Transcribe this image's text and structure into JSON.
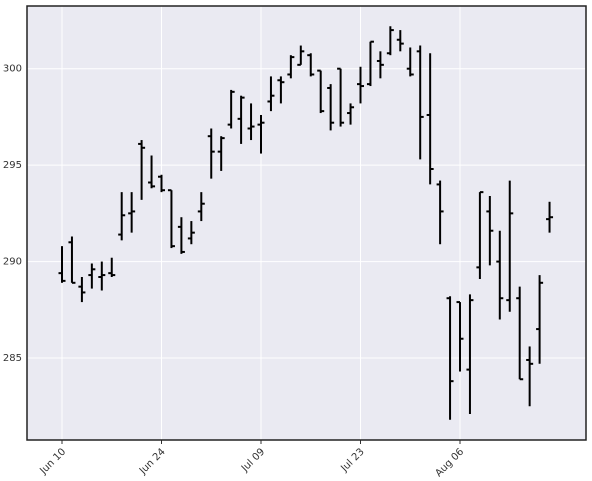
{
  "chart_data": {
    "type": "ohlc",
    "categories": [
      "Jun 10",
      null,
      null,
      null,
      null,
      null,
      null,
      null,
      null,
      null,
      "Jun 24",
      null,
      null,
      null,
      null,
      null,
      null,
      null,
      null,
      null,
      "Jul 09",
      null,
      null,
      null,
      null,
      null,
      null,
      null,
      null,
      null,
      "Jul 23",
      null,
      null,
      null,
      null,
      null,
      null,
      null,
      null,
      null,
      "Aug 06",
      null,
      null,
      null,
      null,
      null,
      null,
      null,
      null,
      null
    ],
    "open": [
      289.4,
      291.0,
      288.7,
      289.3,
      289.2,
      289.4,
      291.4,
      292.5,
      296.1,
      294.1,
      294.4,
      293.7,
      291.8,
      291.2,
      292.6,
      296.5,
      295.7,
      297.1,
      297.4,
      296.9,
      297.1,
      298.3,
      299.4,
      299.7,
      300.2,
      300.7,
      299.9,
      299.0,
      300.0,
      297.7,
      299.2,
      299.2,
      300.4,
      300.8,
      301.5,
      300.0,
      300.9,
      297.6,
      294.0,
      288.1,
      287.9,
      284.4,
      289.7,
      292.6,
      290.0,
      288.0,
      288.1,
      284.9,
      286.5,
      292.2
    ],
    "high": [
      290.8,
      291.3,
      289.2,
      289.9,
      290.0,
      290.2,
      293.6,
      293.6,
      296.3,
      295.5,
      294.5,
      293.7,
      292.3,
      292.1,
      293.6,
      296.9,
      296.5,
      298.9,
      298.6,
      298.2,
      297.6,
      299.6,
      299.6,
      300.7,
      301.2,
      300.8,
      299.9,
      299.2,
      300.0,
      298.2,
      300.1,
      301.4,
      300.9,
      302.2,
      302.0,
      301.1,
      301.2,
      300.8,
      294.2,
      288.2,
      287.9,
      288.3,
      293.6,
      293.4,
      291.6,
      294.2,
      288.7,
      285.6,
      289.3,
      293.1
    ],
    "low": [
      288.9,
      288.9,
      287.9,
      288.6,
      288.5,
      289.2,
      291.1,
      291.5,
      293.2,
      293.8,
      293.6,
      290.7,
      290.4,
      290.9,
      292.1,
      294.3,
      294.7,
      296.9,
      296.1,
      296.3,
      295.6,
      297.8,
      298.2,
      299.5,
      300.2,
      299.6,
      297.7,
      296.8,
      297.0,
      297.1,
      298.2,
      299.1,
      299.5,
      300.7,
      300.9,
      299.6,
      295.3,
      294.0,
      290.9,
      281.8,
      284.3,
      282.1,
      289.1,
      289.8,
      287.0,
      287.4,
      283.9,
      282.5,
      284.7,
      291.5
    ],
    "close": [
      289.0,
      288.9,
      288.4,
      289.6,
      289.3,
      289.3,
      292.4,
      292.6,
      295.9,
      293.9,
      293.7,
      290.8,
      290.5,
      291.5,
      293.0,
      295.7,
      296.4,
      298.8,
      298.5,
      297.0,
      297.2,
      298.6,
      299.3,
      300.6,
      300.9,
      299.7,
      297.8,
      297.2,
      297.2,
      298.0,
      299.1,
      301.4,
      300.2,
      302.0,
      301.3,
      299.7,
      297.5,
      294.8,
      292.6,
      283.8,
      286.0,
      288.0,
      293.6,
      291.6,
      288.1,
      292.5,
      283.9,
      284.7,
      288.9,
      292.3
    ],
    "color": "#000000",
    "ylim": [
      280.75,
      303.25
    ],
    "yticks": [
      285,
      290,
      295,
      300
    ],
    "grid": true
  }
}
